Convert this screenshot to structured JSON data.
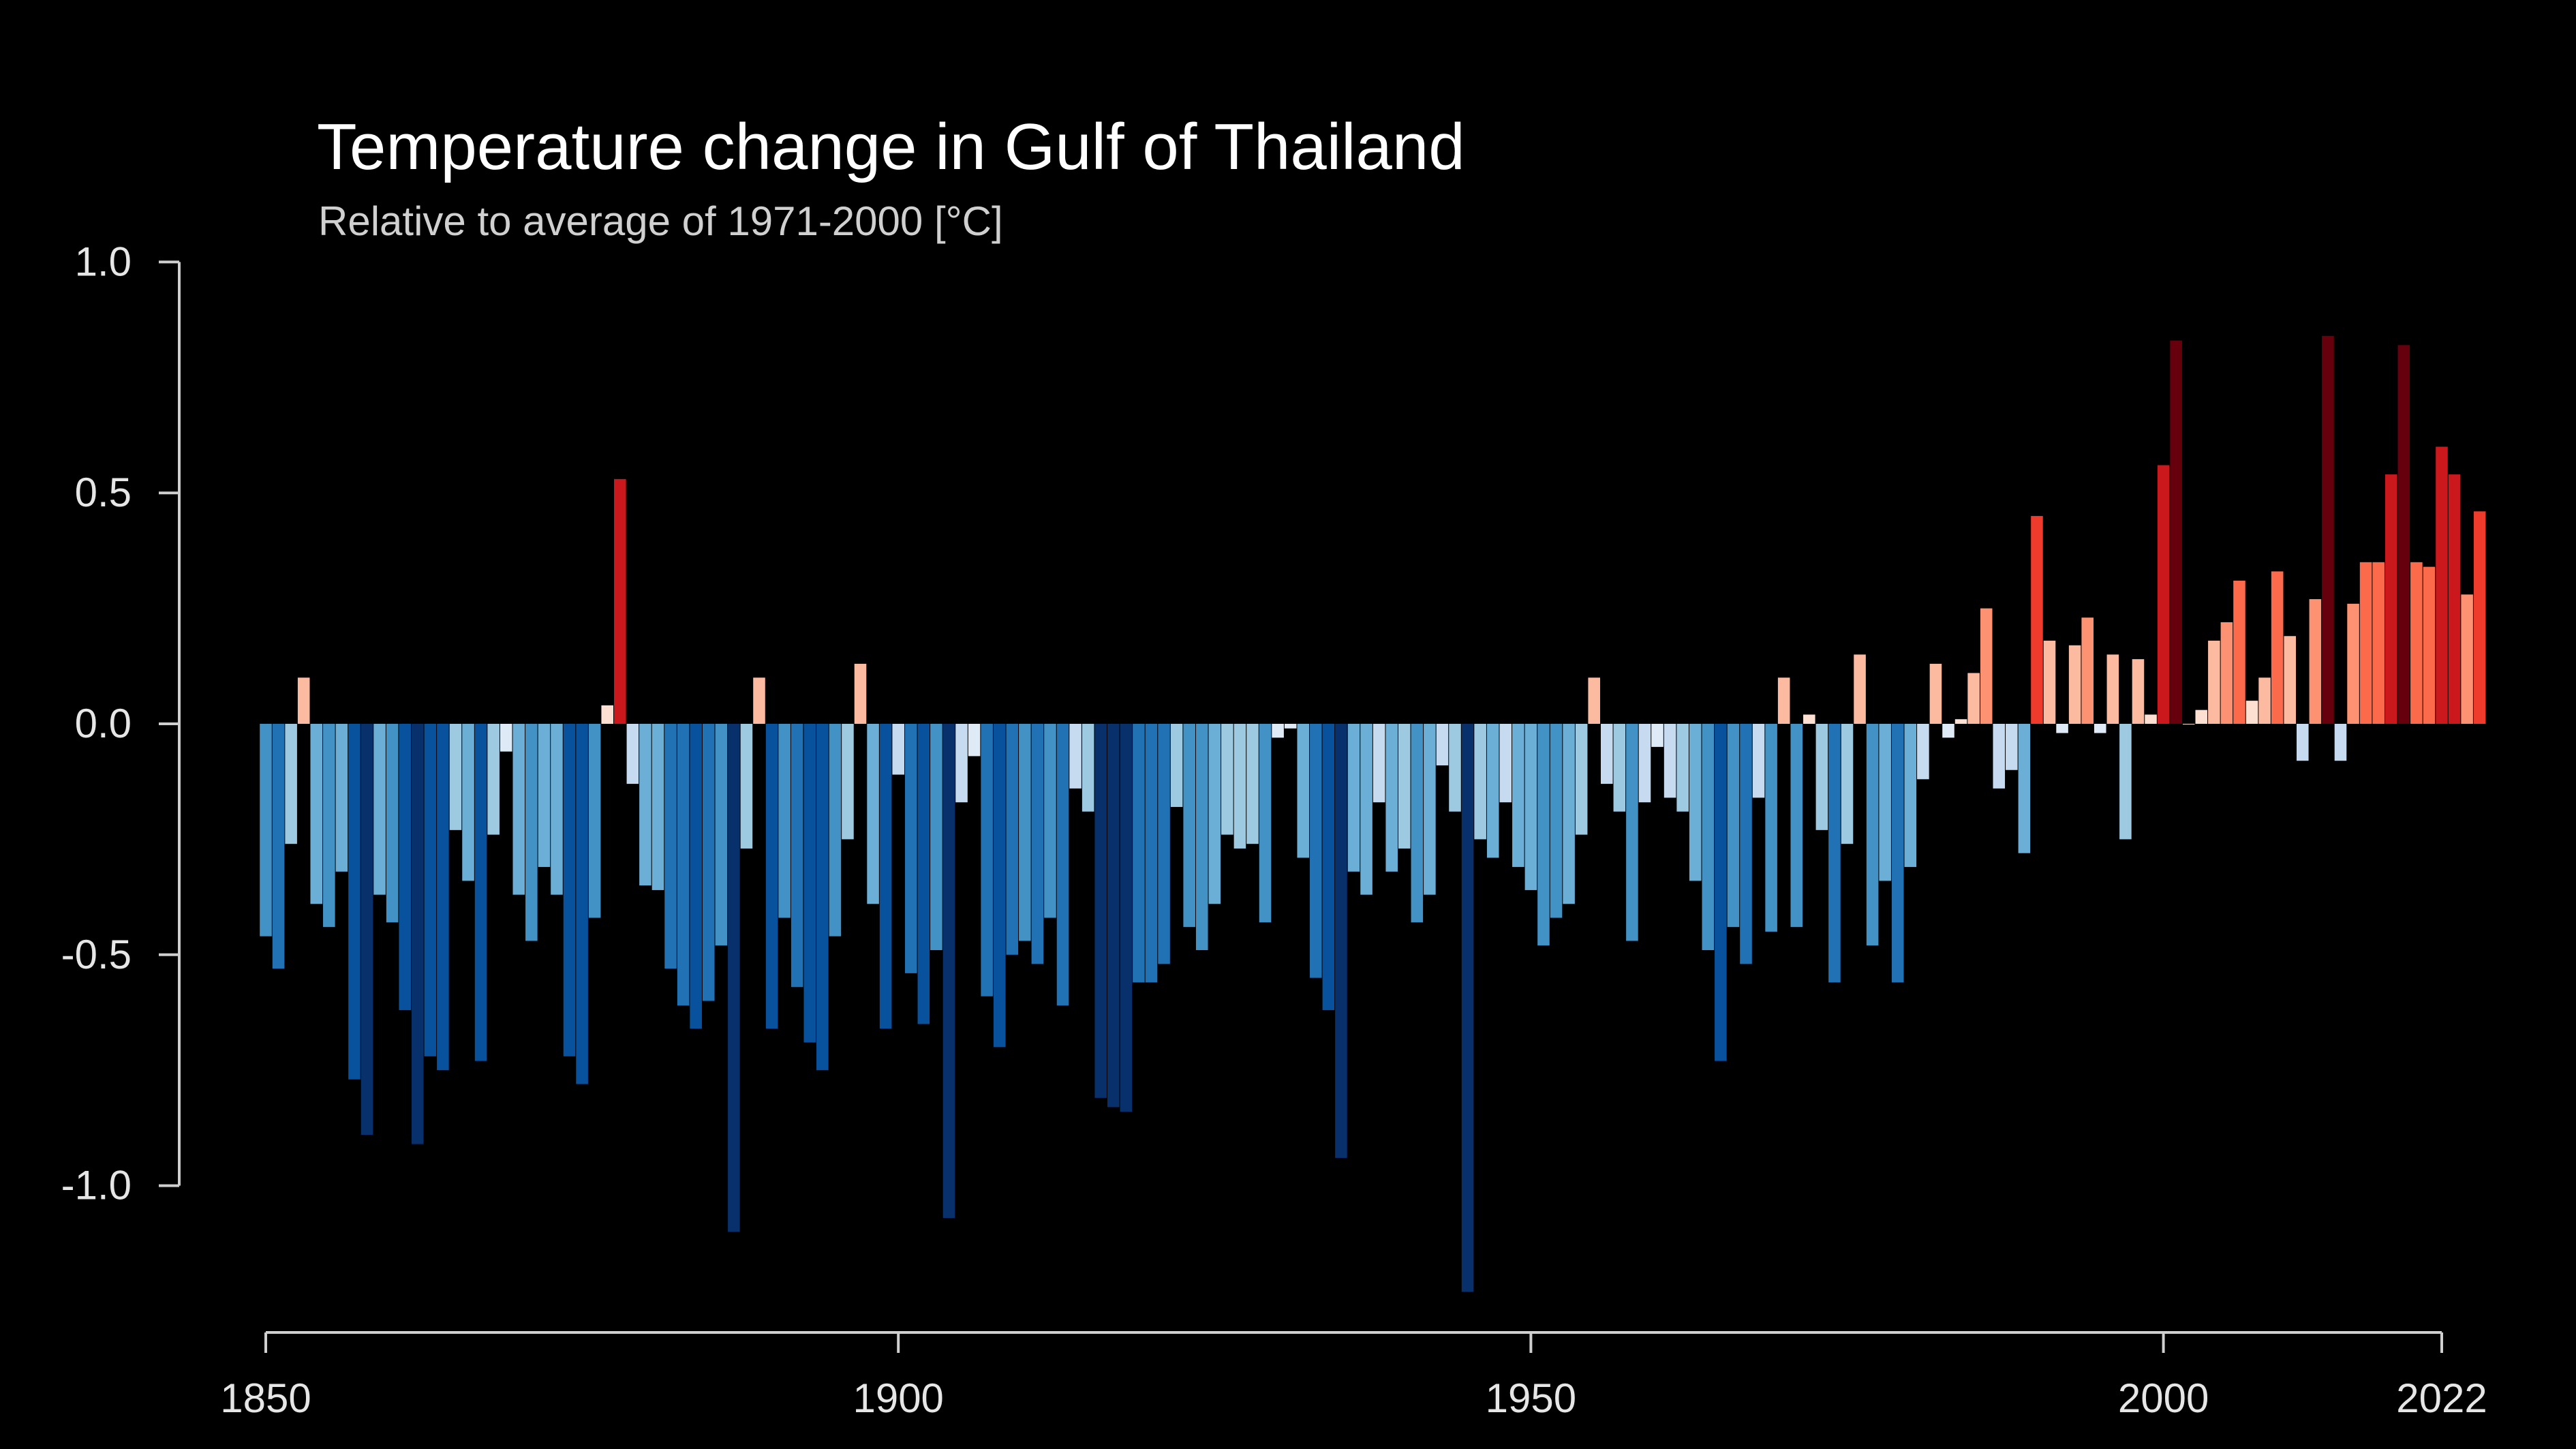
{
  "chart_data": {
    "type": "bar",
    "title": "Temperature change in Gulf of Thailand",
    "subtitle": "Relative to average of 1971-2000  [°C]",
    "xlabel": "",
    "ylabel": "",
    "x_start": 1850,
    "x_end": 2022,
    "ylim": [
      -1.3,
      1.0
    ],
    "xlim": [
      1850,
      2022
    ],
    "y_ticks": [
      1.0,
      0.5,
      0.0,
      -0.5,
      -1.0
    ],
    "y_tick_labels": [
      "1.0",
      "0.5",
      "0.0",
      "-0.5",
      "-1.0"
    ],
    "x_ticks": [
      1850,
      1900,
      1950,
      2000,
      2022
    ],
    "x_tick_labels": [
      "1850",
      "1900",
      "1950",
      "2000",
      "2022"
    ],
    "grid": false,
    "legend": "none",
    "color_scale": {
      "neg_3": "#08306b",
      "neg_2": "#08519c",
      "neg_1": "#2171b5",
      "neg_0": "#4292c6",
      "neg_a": "#6baed6",
      "neg_b": "#9ecae1",
      "neg_c": "#c6dbef",
      "neg_d": "#deebf7",
      "pos_d": "#fee0d2",
      "pos_c": "#fcbba1",
      "pos_b": "#fc9272",
      "pos_a": "#fb6a4a",
      "pos_0": "#ef3b2c",
      "pos_1": "#cb181d",
      "pos_2": "#a50f15",
      "pos_3": "#67000d"
    },
    "values": [
      -0.46,
      -0.53,
      -0.26,
      0.1,
      -0.39,
      -0.44,
      -0.32,
      -0.77,
      -0.89,
      -0.37,
      -0.43,
      -0.62,
      -0.91,
      -0.72,
      -0.75,
      -0.23,
      -0.34,
      -0.73,
      -0.24,
      -0.06,
      -0.37,
      -0.47,
      -0.31,
      -0.37,
      -0.72,
      -0.78,
      -0.42,
      0.04,
      0.53,
      -0.13,
      -0.35,
      -0.36,
      -0.53,
      -0.61,
      -0.66,
      -0.6,
      -0.48,
      -1.1,
      -0.27,
      0.1,
      -0.66,
      -0.42,
      -0.57,
      -0.69,
      -0.75,
      -0.46,
      -0.25,
      0.13,
      -0.39,
      -0.66,
      -0.11,
      -0.54,
      -0.65,
      -0.49,
      -1.07,
      -0.17,
      -0.07,
      -0.59,
      -0.7,
      -0.5,
      -0.47,
      -0.52,
      -0.42,
      -0.61,
      -0.14,
      -0.19,
      -0.81,
      -0.83,
      -0.84,
      -0.56,
      -0.56,
      -0.52,
      -0.18,
      -0.44,
      -0.49,
      -0.39,
      -0.24,
      -0.27,
      -0.26,
      -0.43,
      -0.03,
      -0.01,
      -0.29,
      -0.55,
      -0.62,
      -0.94,
      -0.32,
      -0.37,
      -0.17,
      -0.32,
      -0.27,
      -0.43,
      -0.37,
      -0.09,
      -0.19,
      -1.23,
      -0.25,
      -0.29,
      -0.17,
      -0.31,
      -0.36,
      -0.48,
      -0.42,
      -0.39,
      -0.24,
      0.1,
      -0.13,
      -0.19,
      -0.47,
      -0.17,
      -0.05,
      -0.16,
      -0.19,
      -0.34,
      -0.49,
      -0.73,
      -0.44,
      -0.52,
      -0.16,
      -0.45,
      0.1,
      -0.44,
      0.02,
      -0.23,
      -0.56,
      -0.26,
      0.15,
      -0.48,
      -0.34,
      -0.56,
      -0.31,
      -0.12,
      0.13,
      -0.03,
      0.01,
      0.11,
      0.25,
      -0.14,
      -0.1,
      -0.28,
      0.45,
      0.18,
      -0.02,
      0.17,
      0.23,
      -0.02,
      0.15,
      -0.25,
      0.14,
      0.02,
      0.56,
      0.83,
      0.0,
      0.03,
      0.18,
      0.22,
      0.31,
      0.05,
      0.1,
      0.33,
      0.19,
      -0.08,
      0.27,
      0.84,
      -0.08,
      0.26,
      0.35,
      0.35,
      0.54,
      0.82,
      0.35,
      0.34,
      0.6,
      0.54,
      0.28,
      0.46
    ]
  }
}
